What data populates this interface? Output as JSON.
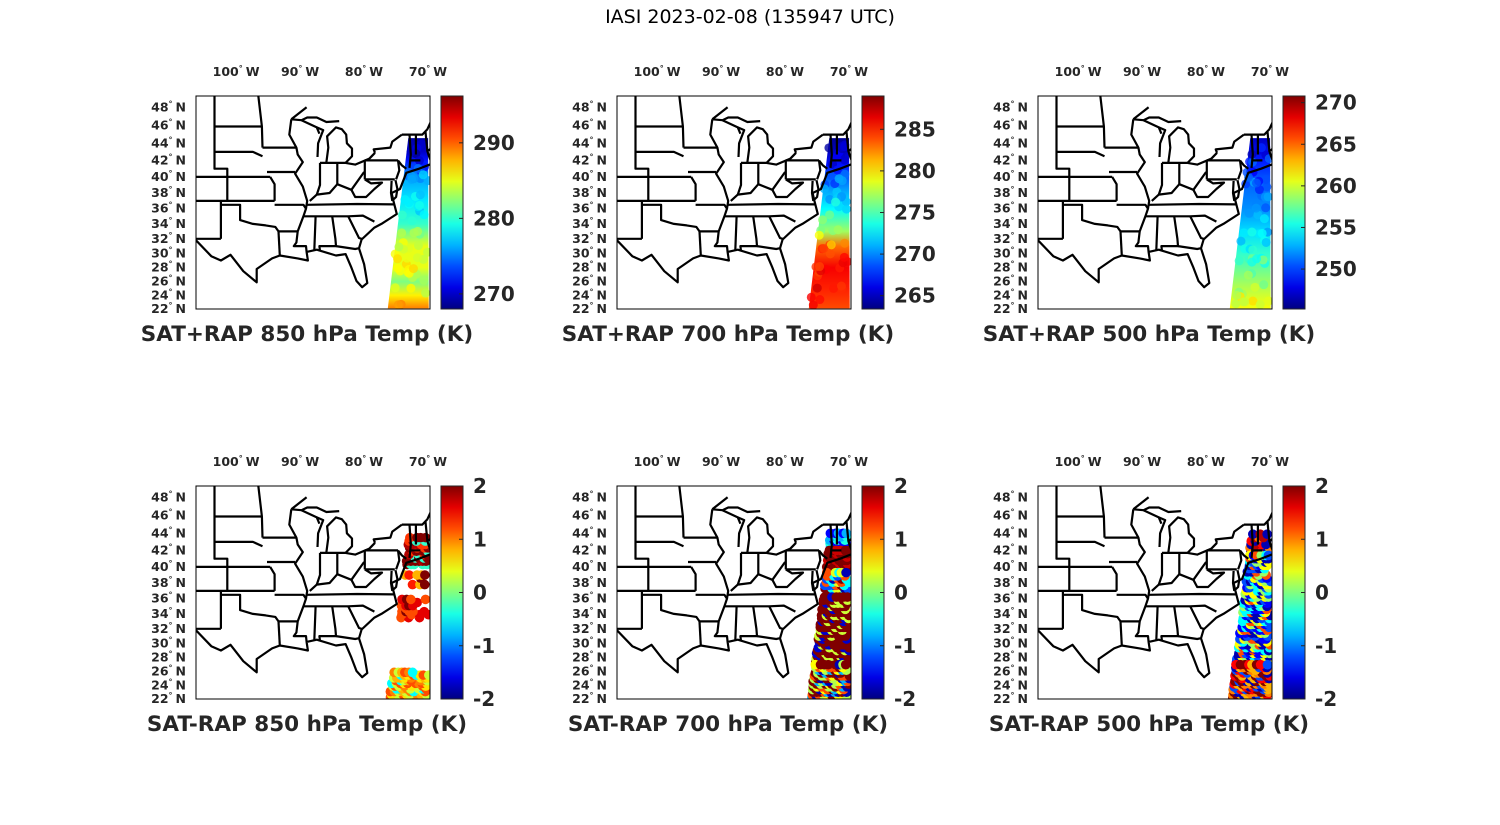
{
  "figure_title": "IASI 2023-02-08 (135947 UTC)",
  "chart_data": {
    "type": "map-scatter",
    "lon_ticks": [
      {
        "lon": -100,
        "label": "100",
        "hemi": "W"
      },
      {
        "lon": -90,
        "label": "90",
        "hemi": "W"
      },
      {
        "lon": -80,
        "label": "80",
        "hemi": "W"
      },
      {
        "lon": -70,
        "label": "70",
        "hemi": "W"
      }
    ],
    "lat_ticks": [
      {
        "lat": 48,
        "label": "48"
      },
      {
        "lat": 46,
        "label": "46"
      },
      {
        "lat": 44,
        "label": "44"
      },
      {
        "lat": 42,
        "label": "42"
      },
      {
        "lat": 40,
        "label": "40"
      },
      {
        "lat": 38,
        "label": "38"
      },
      {
        "lat": 36,
        "label": "36"
      },
      {
        "lat": 34,
        "label": "34"
      },
      {
        "lat": 32,
        "label": "32"
      },
      {
        "lat": 30,
        "label": "30"
      },
      {
        "lat": 28,
        "label": "28"
      },
      {
        "lat": 26,
        "label": "26"
      },
      {
        "lat": 24,
        "label": "24"
      },
      {
        "lat": 22,
        "label": "22"
      }
    ],
    "lat_hemi": "N",
    "lon_range": [
      -106.9,
      -70.3
    ],
    "lat_range": [
      22,
      49.2
    ],
    "colormap": "jet",
    "panels": [
      {
        "title": "SAT+RAP 850 hPa Temp (K)",
        "clim": [
          268,
          296.2
        ],
        "cticks": [
          270,
          280,
          290
        ],
        "ctick_labels": [
          "270",
          "280",
          "290"
        ],
        "profile": [
          [
            44.5,
            269
          ],
          [
            43,
            270
          ],
          [
            42,
            272
          ],
          [
            40,
            276
          ],
          [
            37,
            278
          ],
          [
            34,
            280
          ],
          [
            31,
            285
          ],
          [
            28,
            285
          ],
          [
            26,
            282
          ],
          [
            24,
            286
          ],
          [
            22.2,
            289
          ]
        ]
      },
      {
        "title": "SAT+RAP 700 hPa Temp (K)",
        "clim": [
          263.4,
          289
        ],
        "cticks": [
          265,
          270,
          275,
          280,
          285
        ],
        "ctick_labels": [
          "265",
          "270",
          "275",
          "280",
          "285"
        ],
        "profile": [
          [
            44.5,
            264
          ],
          [
            43,
            265
          ],
          [
            41.5,
            267
          ],
          [
            39,
            270
          ],
          [
            36,
            273
          ],
          [
            33,
            277
          ],
          [
            31,
            283
          ],
          [
            28,
            286
          ],
          [
            25,
            285
          ],
          [
            22.2,
            284
          ]
        ]
      },
      {
        "title": "SAT+RAP 500 hPa Temp (K)",
        "clim": [
          245.2,
          270.8
        ],
        "cticks": [
          250,
          255,
          260,
          265,
          270
        ],
        "ctick_labels": [
          "250",
          "255",
          "260",
          "265",
          "270"
        ],
        "profile": [
          [
            44.5,
            247
          ],
          [
            42,
            249
          ],
          [
            39,
            251
          ],
          [
            36,
            252
          ],
          [
            33,
            254
          ],
          [
            30,
            256
          ],
          [
            27,
            258
          ],
          [
            24,
            260
          ],
          [
            22.2,
            261
          ]
        ]
      },
      {
        "title": "SAT-RAP 850 hPa Temp (K)",
        "clim": [
          -2,
          2
        ],
        "cticks": [
          -2,
          -1,
          0,
          1,
          2
        ],
        "ctick_labels": [
          "-2",
          "-1",
          "0",
          "1",
          "2"
        ],
        "bands": [
          {
            "lat": [
              40.3,
              43.8
            ],
            "density": 0.9,
            "values": [
              2,
              2,
              1.8,
              1.3,
              -0.3
            ]
          },
          {
            "lat": [
              37.8,
              39
            ],
            "density": 0.35,
            "values": [
              2,
              0.8,
              1.4
            ]
          },
          {
            "lat": [
              33.5,
              36
            ],
            "density": 0.4,
            "values": [
              1.6,
              1.2,
              2
            ]
          },
          {
            "lat": [
              22.3,
              26.2
            ],
            "density": 0.85,
            "values": [
              0.6,
              1.0,
              1.2,
              0.3,
              0.8,
              -0.5
            ]
          }
        ]
      },
      {
        "title": "SAT-RAP 700 hPa Temp (K)",
        "clim": [
          -2,
          2
        ],
        "cticks": [
          -2,
          -1,
          0,
          1,
          2
        ],
        "ctick_labels": [
          "-2",
          "-1",
          "0",
          "1",
          "2"
        ],
        "bands": [
          {
            "lat": [
              42,
              44.2
            ],
            "density": 0.9,
            "values": [
              -0.8,
              -0.4,
              -1.5
            ]
          },
          {
            "lat": [
              39.6,
              42
            ],
            "density": 0.9,
            "values": [
              2,
              2,
              1.7
            ]
          },
          {
            "lat": [
              36.5,
              39.3
            ],
            "density": 0.85,
            "values": [
              -1.8,
              0.4,
              -0.5,
              2,
              1.2,
              -1.2
            ]
          },
          {
            "lat": [
              27,
              36.5
            ],
            "density": 0.95,
            "values": [
              2,
              2,
              2,
              2,
              -1.7,
              0.3
            ]
          },
          {
            "lat": [
              22.2,
              27
            ],
            "density": 0.95,
            "values": [
              2,
              -1.8,
              0.5,
              1.2,
              -0.8,
              2,
              0.2
            ]
          }
        ]
      },
      {
        "title": "SAT-RAP 500 hPa Temp (K)",
        "clim": [
          -2,
          2
        ],
        "cticks": [
          -2,
          -1,
          0,
          1,
          2
        ],
        "ctick_labels": [
          "-2",
          "-1",
          "0",
          "1",
          "2"
        ],
        "bands": [
          {
            "lat": [
              41.5,
              44.2
            ],
            "density": 0.9,
            "values": [
              1.5,
              1.0,
              1.8,
              -1.8
            ]
          },
          {
            "lat": [
              27,
              41.5
            ],
            "density": 0.9,
            "values": [
              -1.8,
              -1.2,
              0.5,
              1.2,
              -0.5,
              0.1,
              -1.5
            ]
          },
          {
            "lat": [
              22.2,
              27
            ],
            "density": 0.95,
            "values": [
              1.5,
              -1.8,
              1.0,
              2,
              -1.2,
              0.8
            ]
          }
        ]
      }
    ]
  }
}
